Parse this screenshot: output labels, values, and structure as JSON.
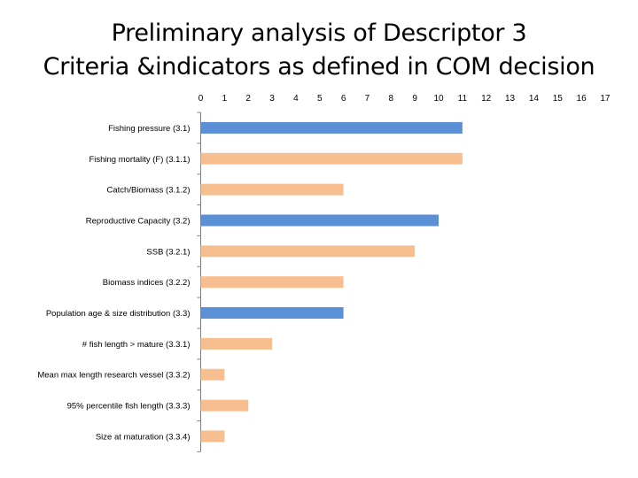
{
  "title_line1": "Preliminary analysis of Descriptor 3",
  "title_line2": "Criteria &indicators as defined in COM decision",
  "colors": {
    "blue": "#5b8fd6",
    "orange": "#f7bf8f",
    "axis": "#7f7f7f"
  },
  "chart_data": {
    "type": "bar",
    "orientation": "horizontal",
    "title": "",
    "xlabel": "",
    "ylabel": "",
    "xlim": [
      0,
      17
    ],
    "xticks": [
      0,
      1,
      2,
      3,
      4,
      5,
      6,
      7,
      8,
      9,
      10,
      11,
      12,
      13,
      14,
      15,
      16,
      17
    ],
    "x_axis_position": "top",
    "grid": false,
    "categories": [
      "Fishing pressure (3.1)",
      "Fishing mortality (F) (3.1.1)",
      "Catch/Biomass (3.1.2)",
      "Reproductive Capacity (3.2)",
      "SSB (3.2.1)",
      "Biomass indices (3.2.2)",
      "Population age & size distribution (3.3)",
      "# fish length > mature (3.3.1)",
      "Mean max length research vessel (3.3.2)",
      "95% percentile fish length (3.3.3)",
      "Size at maturation (3.3.4)"
    ],
    "values": [
      11,
      11,
      6,
      10,
      9,
      6,
      6,
      3,
      1,
      2,
      1
    ],
    "bar_colors": [
      "blue",
      "orange",
      "orange",
      "blue",
      "orange",
      "orange",
      "blue",
      "orange",
      "orange",
      "orange",
      "orange"
    ]
  }
}
